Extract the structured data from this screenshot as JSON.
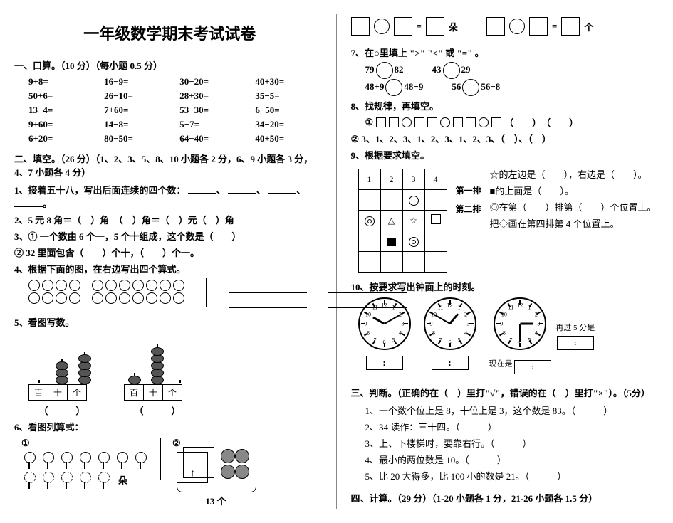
{
  "title": "一年级数学期末考试试卷",
  "section1": {
    "head": "一、口算。（10 分）（每小题 0.5 分）",
    "rows": [
      [
        "9+8=",
        "16−9=",
        "30−20=",
        "40+30="
      ],
      [
        "50+6=",
        "26−10=",
        "28+30=",
        "35−5="
      ],
      [
        "13−4=",
        "7+60=",
        "53−30=",
        "6−50="
      ],
      [
        "9+60=",
        "14−8=",
        "5+7=",
        "34−20="
      ],
      [
        "6+20=",
        "80−50=",
        "64−40=",
        "40+50="
      ]
    ]
  },
  "section2": {
    "head": "二、填空。（26 分）（1、2、3、5、8、10 小题各 2 分，6、9 小题各 3 分，4、7 小题各 4 分）",
    "q1": "1、接着五十八，写出后面连续的四个数：",
    "q2": "2、5 元 8 角＝（　）角　（　）角＝（　）元（　）角",
    "q3a": "3、① 一个数由 6 个一，5 个十组成，这个数是（　　）",
    "q3b": "② 32 里面包含（　　）个十，（　　）个一。",
    "q4": "4、根据下面的图，在右边写出四个算式。",
    "q5": "5、看图写数。",
    "abacus_labels": [
      "百",
      "十",
      "个"
    ],
    "q6": "6、看图列算式："
  },
  "flowers": {
    "label1": "①",
    "label2": "②",
    "unit": "朵",
    "brace_label": "13 个"
  },
  "right": {
    "shape_row1_suffix": "朵",
    "shape_row2_suffix": "个",
    "q7": "7、在○里填上 \">\" \"<\" 或 \"=\" 。",
    "cmp": [
      [
        "79",
        "82"
      ],
      [
        "43",
        "29"
      ],
      [
        "48+9",
        "48−9"
      ],
      [
        "56",
        "56−8"
      ]
    ],
    "q8": "8、找规律，再填空。",
    "q8b": "② 3、1、2、3、1、2、3、1、2、3、（　）、（　）",
    "q9": "9、根据要求填空。",
    "grid_headers": [
      "1",
      "2",
      "3",
      "4"
    ],
    "row_labels": [
      "第一排",
      "第二排"
    ],
    "side_lines": [
      "☆的左边是（　　），右边是（　　）。",
      "■的上面是（　　）。",
      "◎在第（　　）排第（　　）个位置上。",
      "把◇画在第四排第 4 个位置上。"
    ],
    "q10": "10、按要求写出钟面上的时刻。",
    "clock3_caption_a": "现在是",
    "clock3_caption_b": "再过 5 分是"
  },
  "section3": {
    "head": "三、判断。（正确的在（　）里打\"√\"，错误的在（　）里打\"×\"）。（5分）",
    "items": [
      "1、一个数个位上是 8，十位上是 3，这个数是 83。（　　　）",
      "2、34 读作：三十四。（　　　）",
      "3、上、下楼梯时，要靠右行。（　　　）",
      "4、最小的两位数是 10。（　　　）",
      "5、比 20 大得多，比 100 小的数是 21。（　　　）"
    ]
  },
  "section4": {
    "head": "四、计算。（29 分）（1-20 小题各 1 分，21-26 小题各 1.5 分）"
  },
  "clocks": [
    {
      "hour_angle": 300,
      "min_angle": 60
    },
    {
      "hour_angle": 40,
      "min_angle": 300
    },
    {
      "hour_angle": 90,
      "min_angle": 180
    }
  ]
}
